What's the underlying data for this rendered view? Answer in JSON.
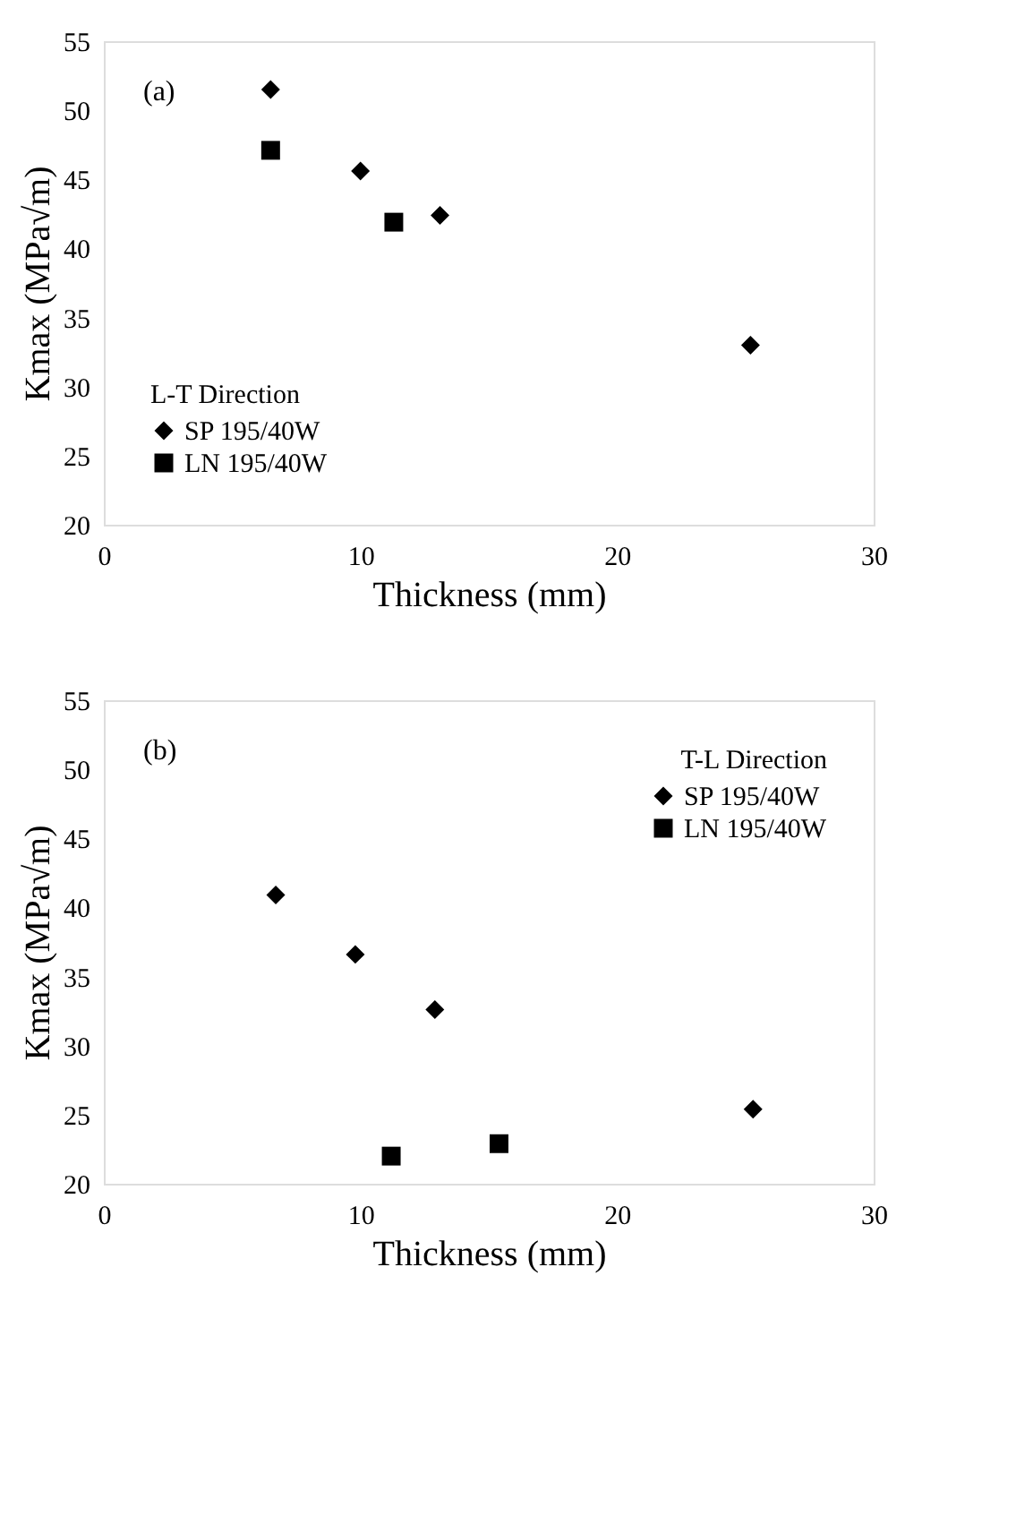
{
  "chart_data": [
    {
      "type": "scatter",
      "annotations": [
        "(a)"
      ],
      "xlabel": "Thickness (mm)",
      "ylabel": "Kmax (MPa√m)",
      "legend_title": "L-T Direction",
      "legend": "bottom left",
      "grid": false,
      "xlim": [
        0,
        30
      ],
      "xticks": [
        0,
        10,
        20,
        30
      ],
      "ylim": [
        20,
        55
      ],
      "yticks": [
        20,
        25,
        30,
        35,
        40,
        45,
        50,
        55
      ],
      "series": [
        {
          "name": "SP 195/40W",
          "color": "#000000",
          "marker": "diamond",
          "x": [
            6.5,
            10.0,
            13.1,
            25.2
          ],
          "values": [
            51.5,
            45.6,
            42.4,
            33.0
          ]
        },
        {
          "name": "LN 195/40W",
          "color": "#000000",
          "marker": "square",
          "x": [
            6.5,
            11.3
          ],
          "values": [
            47.1,
            41.9
          ]
        }
      ]
    },
    {
      "type": "scatter",
      "annotations": [
        "(b)"
      ],
      "xlabel": "Thickness (mm)",
      "ylabel": "Kmax (MPa√m)",
      "legend_title": "T-L Direction",
      "legend": "top right",
      "grid": false,
      "xlim": [
        0,
        30
      ],
      "xticks": [
        0,
        10,
        20,
        30
      ],
      "ylim": [
        20,
        55
      ],
      "yticks": [
        20,
        25,
        30,
        35,
        40,
        45,
        50,
        55
      ],
      "series": [
        {
          "name": "SP 195/40W",
          "color": "#000000",
          "marker": "diamond",
          "x": [
            6.7,
            9.8,
            12.9,
            25.3
          ],
          "values": [
            40.9,
            36.6,
            32.6,
            25.4
          ]
        },
        {
          "name": "LN 195/40W",
          "color": "#000000",
          "marker": "square",
          "x": [
            11.2,
            15.4
          ],
          "values": [
            22.0,
            22.9
          ]
        }
      ]
    }
  ]
}
